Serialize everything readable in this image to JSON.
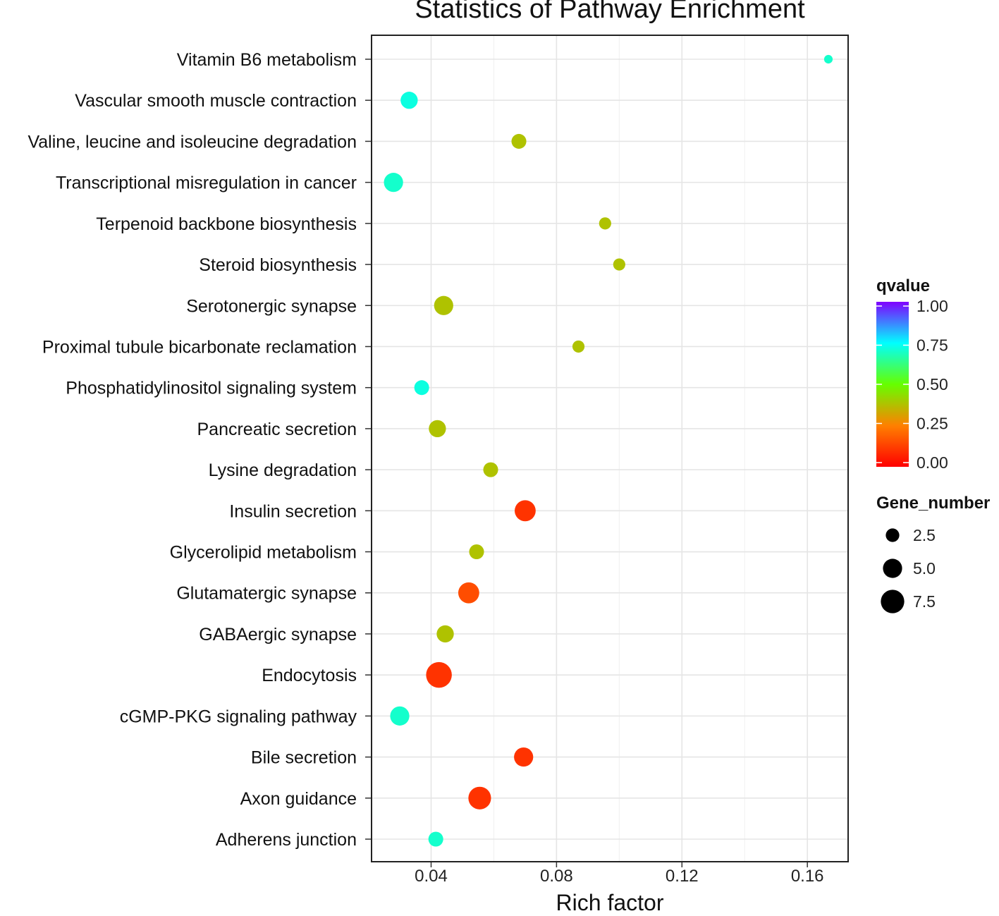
{
  "chart_data": {
    "type": "scatter",
    "title": "Statistics of Pathway Enrichment",
    "xlabel": "Rich factor",
    "ylabel": "",
    "xlim": [
      0.021,
      0.173
    ],
    "x_ticks": [
      0.04,
      0.08,
      0.12,
      0.16
    ],
    "x_tick_labels": [
      "0.04",
      "0.08",
      "0.12",
      "0.16"
    ],
    "grid": true,
    "categories": [
      "Vitamin B6 metabolism",
      "Vascular smooth muscle contraction",
      "Valine, leucine and isoleucine degradation",
      "Transcriptional misregulation in cancer",
      "Terpenoid backbone biosynthesis",
      "Steroid biosynthesis",
      "Serotonergic synapse",
      "Proximal tubule bicarbonate reclamation",
      "Phosphatidylinositol signaling system",
      "Pancreatic secretion",
      "Lysine degradation",
      "Insulin secretion",
      "Glycerolipid metabolism",
      "Glutamatergic synapse",
      "GABAergic synapse",
      "Endocytosis",
      "cGMP-PKG signaling pathway",
      "Bile secretion",
      "Axon guidance",
      "Adherens junction"
    ],
    "points": [
      {
        "pathway": "Vitamin B6 metabolism",
        "rich_factor": 0.1667,
        "gene_number": 1,
        "qvalue": 0.7
      },
      {
        "pathway": "Vascular smooth muscle contraction",
        "rich_factor": 0.033,
        "gene_number": 4,
        "qvalue": 0.72
      },
      {
        "pathway": "Valine, leucine and isoleucine degradation",
        "rich_factor": 0.068,
        "gene_number": 3,
        "qvalue": 0.38
      },
      {
        "pathway": "Transcriptional misregulation in cancer",
        "rich_factor": 0.028,
        "gene_number": 5,
        "qvalue": 0.7
      },
      {
        "pathway": "Terpenoid backbone biosynthesis",
        "rich_factor": 0.0955,
        "gene_number": 2,
        "qvalue": 0.38
      },
      {
        "pathway": "Steroid biosynthesis",
        "rich_factor": 0.1,
        "gene_number": 2,
        "qvalue": 0.38
      },
      {
        "pathway": "Serotonergic synapse",
        "rich_factor": 0.044,
        "gene_number": 5,
        "qvalue": 0.38
      },
      {
        "pathway": "Proximal tubule bicarbonate reclamation",
        "rich_factor": 0.087,
        "gene_number": 2,
        "qvalue": 0.38
      },
      {
        "pathway": "Phosphatidylinositol signaling system",
        "rich_factor": 0.037,
        "gene_number": 3,
        "qvalue": 0.72
      },
      {
        "pathway": "Pancreatic secretion",
        "rich_factor": 0.042,
        "gene_number": 4,
        "qvalue": 0.38
      },
      {
        "pathway": "Lysine degradation",
        "rich_factor": 0.059,
        "gene_number": 3,
        "qvalue": 0.38
      },
      {
        "pathway": "Insulin secretion",
        "rich_factor": 0.07,
        "gene_number": 6,
        "qvalue": 0.1
      },
      {
        "pathway": "Glycerolipid metabolism",
        "rich_factor": 0.0545,
        "gene_number": 3,
        "qvalue": 0.38
      },
      {
        "pathway": "Glutamatergic synapse",
        "rich_factor": 0.052,
        "gene_number": 6,
        "qvalue": 0.15
      },
      {
        "pathway": "GABAergic synapse",
        "rich_factor": 0.0445,
        "gene_number": 4,
        "qvalue": 0.38
      },
      {
        "pathway": "Endocytosis",
        "rich_factor": 0.0425,
        "gene_number": 9,
        "qvalue": 0.1
      },
      {
        "pathway": "cGMP-PKG signaling pathway",
        "rich_factor": 0.03,
        "gene_number": 5,
        "qvalue": 0.7
      },
      {
        "pathway": "Bile secretion",
        "rich_factor": 0.0695,
        "gene_number": 5,
        "qvalue": 0.1
      },
      {
        "pathway": "Axon guidance",
        "rich_factor": 0.0555,
        "gene_number": 7,
        "qvalue": 0.1
      },
      {
        "pathway": "Adherens junction",
        "rich_factor": 0.0415,
        "gene_number": 3,
        "qvalue": 0.7
      }
    ],
    "color_legend": {
      "title": "qvalue",
      "min": 0,
      "max": 1,
      "ticks": [
        1.0,
        0.75,
        0.5,
        0.25,
        0.0
      ],
      "tick_labels": [
        "1.00",
        "0.75",
        "0.50",
        "0.25",
        "0.00"
      ],
      "colors": [
        "#ff0000",
        "#ff8000",
        "#66ff00",
        "#00ffff",
        "#8000ff"
      ]
    },
    "size_legend": {
      "title": "Gene_number",
      "values": [
        2.5,
        5.0,
        7.5
      ],
      "labels": [
        "2.5",
        "5.0",
        "7.5"
      ]
    },
    "legend_position": "right"
  }
}
